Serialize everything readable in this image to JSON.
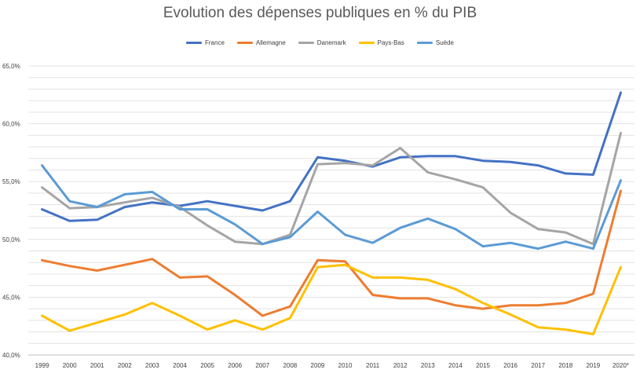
{
  "chart_data": {
    "type": "line",
    "title": "Evolution des dépenses publiques en % du PIB",
    "xlabel": "",
    "ylabel": "",
    "categories": [
      "1999",
      "2000",
      "2001",
      "2002",
      "2003",
      "2004",
      "2005",
      "2006",
      "2007",
      "2008",
      "2009",
      "2010",
      "2011",
      "2012",
      "2013",
      "2014",
      "2015",
      "2016",
      "2017",
      "2018",
      "2019",
      "2020*"
    ],
    "ylim": [
      40,
      65
    ],
    "yticks": [
      "40,0%",
      "45,0%",
      "50,0%",
      "55,0%",
      "60,0%",
      "65,0%"
    ],
    "ytick_values": [
      40,
      45,
      50,
      55,
      60,
      65
    ],
    "grid": true,
    "legend_position": "top",
    "series": [
      {
        "name": "France",
        "color": "#4472C4",
        "values": [
          52.6,
          51.6,
          51.7,
          52.8,
          53.2,
          52.9,
          53.3,
          52.9,
          52.5,
          53.3,
          57.1,
          56.8,
          56.3,
          57.1,
          57.2,
          57.2,
          56.8,
          56.7,
          56.4,
          55.7,
          55.6,
          62.7
        ]
      },
      {
        "name": "Allemagne",
        "color": "#ED7D31",
        "values": [
          48.2,
          47.7,
          47.3,
          47.8,
          48.3,
          46.7,
          46.8,
          45.2,
          43.4,
          44.2,
          48.2,
          48.1,
          45.2,
          44.9,
          44.9,
          44.3,
          44.0,
          44.3,
          44.3,
          44.5,
          45.3,
          54.2
        ]
      },
      {
        "name": "Danemark",
        "color": "#A5A5A5",
        "values": [
          54.5,
          52.7,
          52.8,
          53.2,
          53.6,
          52.8,
          51.2,
          49.8,
          49.6,
          50.4,
          56.5,
          56.6,
          56.4,
          57.9,
          55.8,
          55.2,
          54.5,
          52.3,
          50.9,
          50.6,
          49.6,
          59.2
        ]
      },
      {
        "name": "Pays-Bas",
        "color": "#FFC000",
        "values": [
          43.4,
          42.1,
          42.8,
          43.5,
          44.5,
          43.4,
          42.2,
          43.0,
          42.2,
          43.2,
          47.6,
          47.8,
          46.7,
          46.7,
          46.5,
          45.7,
          44.5,
          43.5,
          42.4,
          42.2,
          41.8,
          47.6
        ]
      },
      {
        "name": "Suède",
        "color": "#5B9BD5",
        "values": [
          56.4,
          53.3,
          52.8,
          53.9,
          54.1,
          52.6,
          52.6,
          51.3,
          49.6,
          50.2,
          52.4,
          50.4,
          49.7,
          51.0,
          51.8,
          50.9,
          49.4,
          49.7,
          49.2,
          49.8,
          49.2,
          55.1
        ]
      }
    ]
  }
}
